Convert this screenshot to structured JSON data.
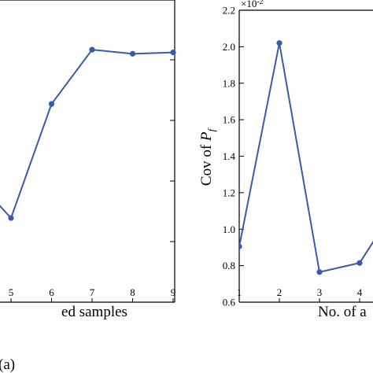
{
  "colors": {
    "line": "#3a5ba8",
    "axis": "#000000"
  },
  "panel_label": "(a)",
  "chart_data": [
    {
      "type": "line",
      "title": "",
      "xlabel": "ed samples",
      "ylabel": "",
      "xlim": [
        4,
        9
      ],
      "ylim": [
        0,
        1
      ],
      "grid": false,
      "xticks": [
        5,
        6,
        7,
        8,
        9
      ],
      "x": [
        4.2,
        5,
        6,
        7,
        8,
        9
      ],
      "series": [
        {
          "values": [
            0.44,
            0.31,
            0.73,
            0.93,
            0.915,
            0.92
          ]
        }
      ]
    },
    {
      "type": "line",
      "title": "",
      "xlabel": "No. of a",
      "ylabel_main": "Cov of ",
      "ylabel_var": "P",
      "ylabel_sub": "f",
      "exponent_base": "×10",
      "exponent_power": "-2",
      "xlim": [
        1,
        4.6
      ],
      "ylim": [
        0.6,
        2.2
      ],
      "grid": false,
      "xticks": [
        "1",
        "2",
        "3",
        "4"
      ],
      "yticks": [
        "0.6",
        "0.8",
        "1.0",
        "1.2",
        "1.4",
        "1.6",
        "1.8",
        "2.0",
        "2.2"
      ],
      "x": [
        1,
        2,
        3,
        4,
        4.6
      ],
      "series": [
        {
          "values": [
            0.905,
            2.02,
            0.765,
            0.815,
            1.02
          ]
        }
      ]
    }
  ]
}
